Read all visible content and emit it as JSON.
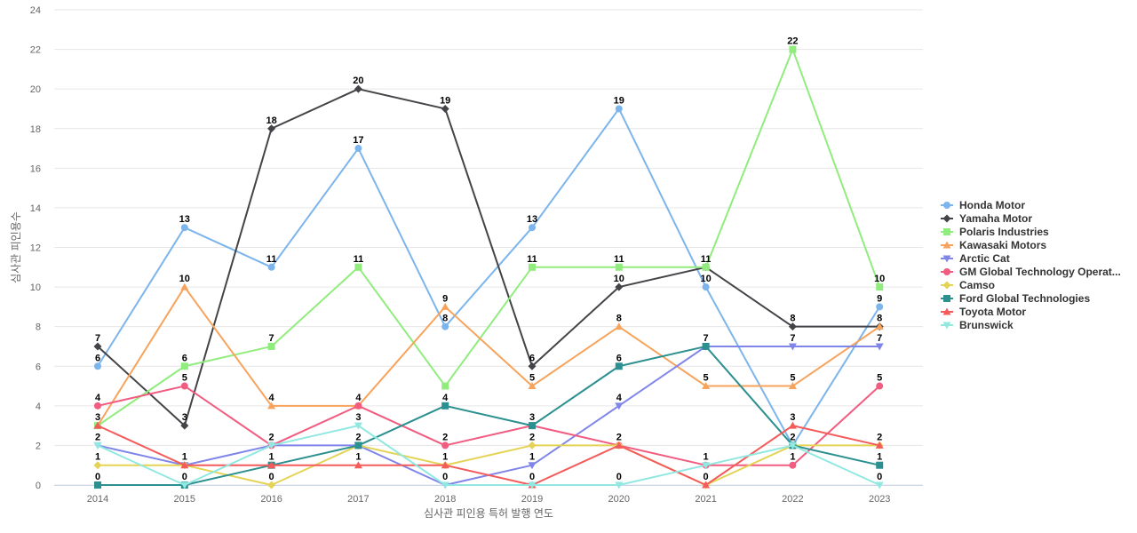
{
  "chart_data": {
    "type": "line",
    "title": "",
    "xlabel": "심사관 피인용 특허 발행 연도",
    "ylabel": "심사관 피인용수",
    "ylim": [
      0,
      24
    ],
    "yticks": [
      0,
      2,
      4,
      6,
      8,
      10,
      12,
      14,
      16,
      18,
      20,
      22,
      24
    ],
    "grid": true,
    "legend_position": "right",
    "categories": [
      "2014",
      "2015",
      "2016",
      "2017",
      "2018",
      "2019",
      "2020",
      "2021",
      "2022",
      "2023"
    ],
    "series": [
      {
        "name": "Honda Motor",
        "color": "#7cb5ec",
        "marker": "circle",
        "values": [
          6,
          13,
          11,
          17,
          8,
          13,
          19,
          10,
          2,
          9
        ]
      },
      {
        "name": "Yamaha Motor",
        "color": "#434348",
        "marker": "diamond",
        "values": [
          7,
          3,
          18,
          20,
          19,
          6,
          10,
          11,
          8,
          8
        ]
      },
      {
        "name": "Polaris Industries",
        "color": "#90ed7d",
        "marker": "square",
        "values": [
          3,
          6,
          7,
          11,
          5,
          11,
          11,
          11,
          22,
          10
        ]
      },
      {
        "name": "Kawasaki Motors",
        "color": "#f7a35c",
        "marker": "triangle",
        "values": [
          3,
          10,
          4,
          4,
          9,
          5,
          8,
          5,
          5,
          8
        ]
      },
      {
        "name": "Arctic Cat",
        "color": "#8085e9",
        "marker": "triangle-down",
        "values": [
          2,
          1,
          2,
          2,
          0,
          1,
          4,
          7,
          7,
          7
        ]
      },
      {
        "name": "GM Global Technology Operat...",
        "color": "#f15c80",
        "marker": "circle",
        "values": [
          4,
          5,
          2,
          4,
          2,
          3,
          2,
          1,
          1,
          5
        ]
      },
      {
        "name": "Camso",
        "color": "#e4d354",
        "marker": "diamond",
        "values": [
          1,
          1,
          0,
          2,
          1,
          2,
          2,
          0,
          2,
          2
        ]
      },
      {
        "name": "Ford Global Technologies",
        "color": "#2b908f",
        "marker": "square",
        "values": [
          0,
          0,
          1,
          2,
          4,
          3,
          6,
          7,
          2,
          1
        ]
      },
      {
        "name": "Toyota Motor",
        "color": "#f45b5b",
        "marker": "triangle",
        "values": [
          3,
          1,
          1,
          1,
          1,
          0,
          2,
          0,
          3,
          2
        ]
      },
      {
        "name": "Brunswick",
        "color": "#91e8e1",
        "marker": "triangle-down",
        "values": [
          2,
          0,
          2,
          3,
          0,
          0,
          0,
          1,
          2,
          0
        ]
      }
    ],
    "data_labels": [
      {
        "text": "7",
        "x": "2014",
        "y": 7
      },
      {
        "text": "6",
        "x": "2014",
        "y": 6
      },
      {
        "text": "4",
        "x": "2014",
        "y": 4
      },
      {
        "text": "3",
        "x": "2014",
        "y": 3
      },
      {
        "text": "2",
        "x": "2014",
        "y": 2
      },
      {
        "text": "1",
        "x": "2014",
        "y": 1
      },
      {
        "text": "0",
        "x": "2014",
        "y": 0
      },
      {
        "text": "13",
        "x": "2015",
        "y": 13
      },
      {
        "text": "10",
        "x": "2015",
        "y": 10
      },
      {
        "text": "6",
        "x": "2015",
        "y": 6
      },
      {
        "text": "5",
        "x": "2015",
        "y": 5
      },
      {
        "text": "3",
        "x": "2015",
        "y": 3
      },
      {
        "text": "1",
        "x": "2015",
        "y": 1
      },
      {
        "text": "0",
        "x": "2015",
        "y": 0
      },
      {
        "text": "18",
        "x": "2016",
        "y": 18
      },
      {
        "text": "11",
        "x": "2016",
        "y": 11
      },
      {
        "text": "7",
        "x": "2016",
        "y": 7
      },
      {
        "text": "4",
        "x": "2016",
        "y": 4
      },
      {
        "text": "2",
        "x": "2016",
        "y": 2
      },
      {
        "text": "1",
        "x": "2016",
        "y": 1
      },
      {
        "text": "0",
        "x": "2016",
        "y": 0
      },
      {
        "text": "20",
        "x": "2017",
        "y": 20
      },
      {
        "text": "17",
        "x": "2017",
        "y": 17
      },
      {
        "text": "11",
        "x": "2017",
        "y": 11
      },
      {
        "text": "4",
        "x": "2017",
        "y": 4
      },
      {
        "text": "3",
        "x": "2017",
        "y": 3
      },
      {
        "text": "2",
        "x": "2017",
        "y": 2
      },
      {
        "text": "1",
        "x": "2017",
        "y": 1
      },
      {
        "text": "19",
        "x": "2018",
        "y": 19
      },
      {
        "text": "9",
        "x": "2018",
        "y": 9
      },
      {
        "text": "8",
        "x": "2018",
        "y": 8
      },
      {
        "text": "4",
        "x": "2018",
        "y": 4
      },
      {
        "text": "2",
        "x": "2018",
        "y": 2
      },
      {
        "text": "1",
        "x": "2018",
        "y": 1
      },
      {
        "text": "0",
        "x": "2018",
        "y": 0
      },
      {
        "text": "13",
        "x": "2019",
        "y": 13
      },
      {
        "text": "11",
        "x": "2019",
        "y": 11
      },
      {
        "text": "6",
        "x": "2019",
        "y": 6
      },
      {
        "text": "5",
        "x": "2019",
        "y": 5
      },
      {
        "text": "3",
        "x": "2019",
        "y": 3
      },
      {
        "text": "2",
        "x": "2019",
        "y": 2
      },
      {
        "text": "1",
        "x": "2019",
        "y": 1
      },
      {
        "text": "0",
        "x": "2019",
        "y": 0
      },
      {
        "text": "19",
        "x": "2020",
        "y": 19
      },
      {
        "text": "11",
        "x": "2020",
        "y": 11
      },
      {
        "text": "10",
        "x": "2020",
        "y": 10
      },
      {
        "text": "8",
        "x": "2020",
        "y": 8
      },
      {
        "text": "6",
        "x": "2020",
        "y": 6
      },
      {
        "text": "4",
        "x": "2020",
        "y": 4
      },
      {
        "text": "2",
        "x": "2020",
        "y": 2
      },
      {
        "text": "0",
        "x": "2020",
        "y": 0
      },
      {
        "text": "11",
        "x": "2021",
        "y": 11
      },
      {
        "text": "10",
        "x": "2021",
        "y": 10
      },
      {
        "text": "7",
        "x": "2021",
        "y": 7
      },
      {
        "text": "5",
        "x": "2021",
        "y": 5
      },
      {
        "text": "1",
        "x": "2021",
        "y": 1
      },
      {
        "text": "0",
        "x": "2021",
        "y": 0
      },
      {
        "text": "22",
        "x": "2022",
        "y": 22
      },
      {
        "text": "8",
        "x": "2022",
        "y": 8
      },
      {
        "text": "7",
        "x": "2022",
        "y": 7
      },
      {
        "text": "5",
        "x": "2022",
        "y": 5
      },
      {
        "text": "3",
        "x": "2022",
        "y": 3
      },
      {
        "text": "2",
        "x": "2022",
        "y": 2
      },
      {
        "text": "1",
        "x": "2022",
        "y": 1
      },
      {
        "text": "10",
        "x": "2023",
        "y": 10
      },
      {
        "text": "9",
        "x": "2023",
        "y": 9
      },
      {
        "text": "8",
        "x": "2023",
        "y": 8
      },
      {
        "text": "7",
        "x": "2023",
        "y": 7
      },
      {
        "text": "5",
        "x": "2023",
        "y": 5
      },
      {
        "text": "2",
        "x": "2023",
        "y": 2
      },
      {
        "text": "1",
        "x": "2023",
        "y": 1
      },
      {
        "text": "0",
        "x": "2023",
        "y": 0
      }
    ]
  }
}
